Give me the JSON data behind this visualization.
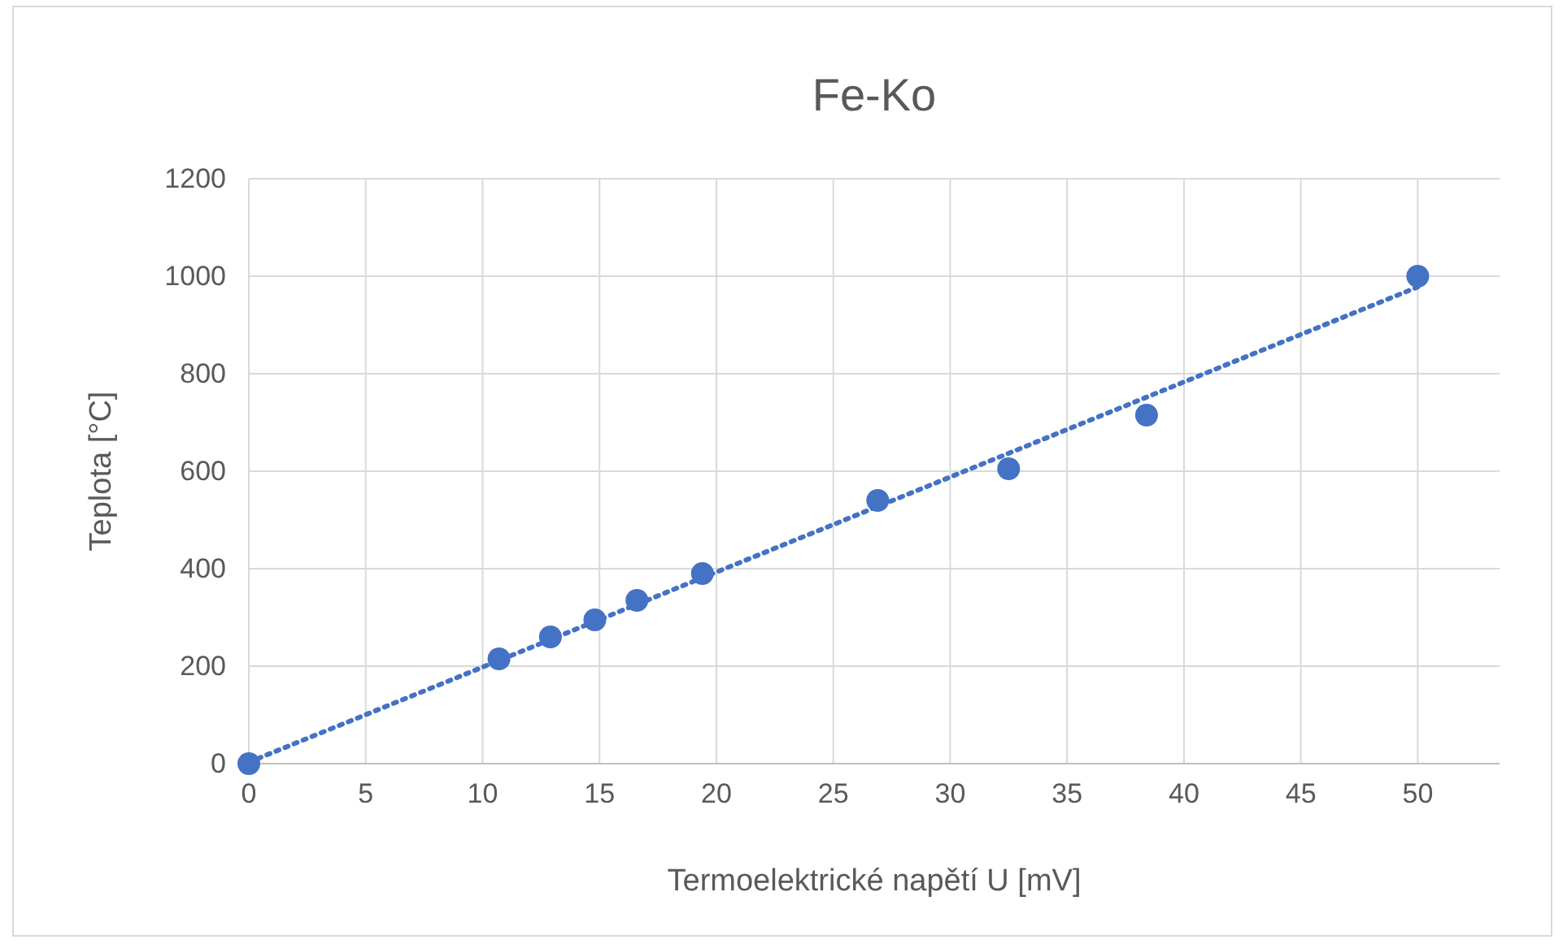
{
  "chart_data": {
    "type": "scatter",
    "title": "Fe-Ko",
    "xlabel": "Termoelektrické napětí U [mV]",
    "ylabel": "Teplota  [°C]",
    "xlim": [
      0,
      53.5
    ],
    "xticks": [
      0,
      5,
      10,
      15,
      20,
      25,
      30,
      35,
      40,
      45,
      50
    ],
    "ylim": [
      0,
      1200
    ],
    "yticks": [
      0,
      200,
      400,
      600,
      800,
      1000,
      1200
    ],
    "grid": true,
    "series": [
      {
        "color": "#4472c4",
        "marker": "circle",
        "x": [
          0,
          10.7,
          12.9,
          14.8,
          16.6,
          19.4,
          26.9,
          32.5,
          38.4,
          50
        ],
        "values": [
          0,
          215,
          260,
          295,
          335,
          390,
          540,
          605,
          715,
          1000
        ]
      },
      {
        "type": "line",
        "color": "#4472c4",
        "line_style": "dotted",
        "x": [
          0,
          50
        ],
        "values": [
          3,
          978
        ]
      }
    ]
  }
}
